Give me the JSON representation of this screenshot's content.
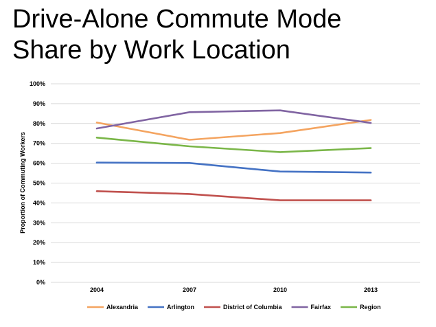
{
  "title_lines": [
    "Drive-Alone Commute Mode",
    "Share by Work Location"
  ],
  "chart_data": {
    "type": "line",
    "title": "Drive-Alone Commute Mode Share by Work Location",
    "xlabel": "",
    "ylabel": "Proportion of Commuting Workers",
    "categories": [
      "2004",
      "2007",
      "2010",
      "2013"
    ],
    "ylim": [
      0,
      100
    ],
    "ytick_values": [
      0,
      10,
      20,
      30,
      40,
      50,
      60,
      70,
      80,
      90,
      100
    ],
    "ytick_labels": [
      "0%",
      "10%",
      "20%",
      "30%",
      "40%",
      "50%",
      "60%",
      "70%",
      "80%",
      "90%",
      "100%"
    ],
    "grid": true,
    "legend": "bottom",
    "series": [
      {
        "name": "Alexandria",
        "color": "#F4A460",
        "values": [
          80.5,
          71.8,
          75.2,
          81.8
        ]
      },
      {
        "name": "Arlington",
        "color": "#4472C4",
        "values": [
          60.3,
          60.1,
          55.8,
          55.3
        ]
      },
      {
        "name": "District of Columbia",
        "color": "#C0504D",
        "values": [
          45.9,
          44.5,
          41.3,
          41.3
        ]
      },
      {
        "name": "Fairfax",
        "color": "#8064A2",
        "values": [
          77.5,
          85.7,
          86.6,
          80.3
        ]
      },
      {
        "name": "Region",
        "color": "#7AB648",
        "values": [
          72.9,
          68.5,
          65.6,
          67.6
        ]
      }
    ]
  }
}
